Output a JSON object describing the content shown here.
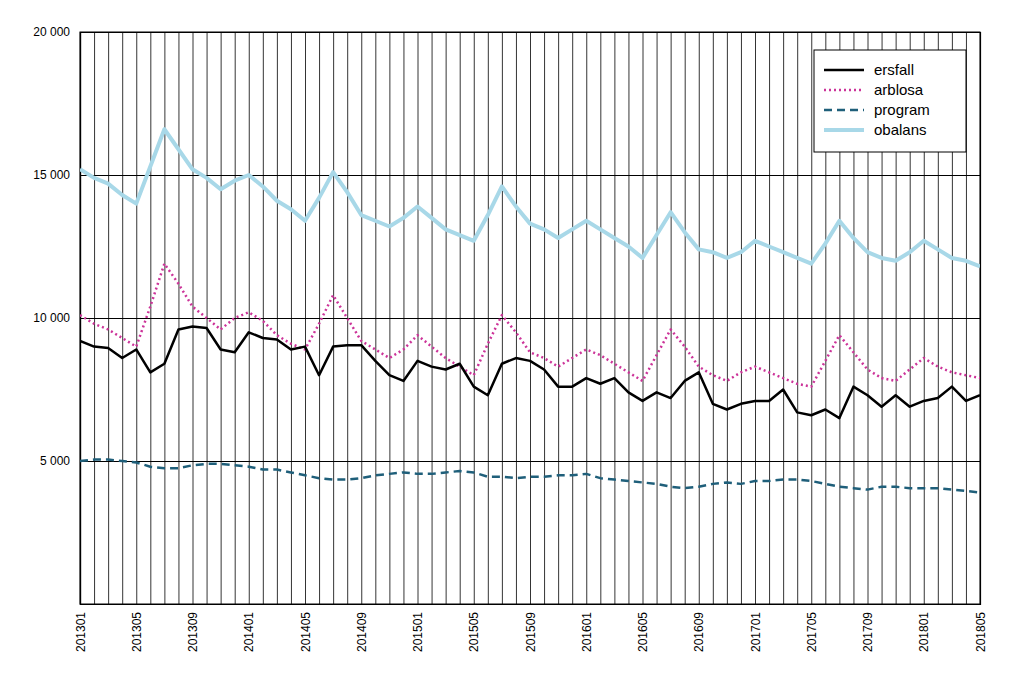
{
  "chart_data": {
    "type": "line",
    "categories": [
      "201301",
      null,
      null,
      null,
      "201305",
      null,
      null,
      null,
      "201309",
      null,
      null,
      null,
      "201401",
      null,
      null,
      null,
      "201405",
      null,
      null,
      null,
      "201409",
      null,
      null,
      null,
      "201501",
      null,
      null,
      null,
      "201505",
      null,
      null,
      null,
      "201509",
      null,
      null,
      null,
      "201601",
      null,
      null,
      null,
      "201605",
      null,
      null,
      null,
      "201609",
      null,
      null,
      null,
      "201701",
      null,
      null,
      null,
      "201705",
      null,
      null,
      null,
      "201709",
      null,
      null,
      null,
      "201801",
      null,
      null,
      null,
      "201805"
    ],
    "series": [
      {
        "name": "ersfall",
        "color": "#000000",
        "line_style": "solid",
        "values": [
          9200,
          9000,
          8950,
          8600,
          8900,
          8100,
          8400,
          9600,
          9700,
          9650,
          8900,
          8800,
          9500,
          9300,
          9250,
          8900,
          9000,
          8000,
          9000,
          9050,
          9050,
          8500,
          8000,
          7800,
          8500,
          8300,
          8200,
          8400,
          7600,
          7300,
          8400,
          8600,
          8500,
          8200,
          7600,
          7600,
          7900,
          7700,
          7900,
          7400,
          7100,
          7400,
          7200,
          7800,
          8100,
          7000,
          6800,
          7000,
          7100,
          7100,
          7500,
          6700,
          6600,
          6800,
          6500,
          7600,
          7300,
          6900,
          7300,
          6900,
          7100,
          7200,
          7600,
          7100,
          7300
        ]
      },
      {
        "name": "arblosa",
        "color": "#cc3399",
        "line_style": "dotted",
        "values": [
          10100,
          9800,
          9600,
          9300,
          9000,
          10400,
          11900,
          11200,
          10400,
          10000,
          9600,
          10000,
          10200,
          9900,
          9400,
          9100,
          8900,
          9800,
          10800,
          10000,
          9200,
          8900,
          8600,
          8900,
          9400,
          9000,
          8600,
          8300,
          8000,
          9100,
          10100,
          9500,
          8800,
          8600,
          8300,
          8600,
          8900,
          8700,
          8400,
          8100,
          7800,
          8700,
          9600,
          9000,
          8300,
          8000,
          7800,
          8100,
          8300,
          8100,
          7900,
          7700,
          7600,
          8500,
          9400,
          8800,
          8200,
          7900,
          7800,
          8200,
          8600,
          8300,
          8100,
          8000,
          7900
        ]
      },
      {
        "name": "program",
        "color": "#1f5f7a",
        "line_style": "dashed",
        "values": [
          5000,
          5050,
          5050,
          5000,
          4950,
          4800,
          4750,
          4750,
          4850,
          4900,
          4900,
          4850,
          4800,
          4700,
          4700,
          4600,
          4500,
          4400,
          4350,
          4350,
          4400,
          4500,
          4550,
          4600,
          4550,
          4550,
          4600,
          4650,
          4600,
          4450,
          4450,
          4400,
          4450,
          4450,
          4500,
          4500,
          4550,
          4400,
          4350,
          4300,
          4250,
          4200,
          4100,
          4050,
          4100,
          4200,
          4250,
          4200,
          4300,
          4300,
          4350,
          4350,
          4300,
          4200,
          4100,
          4050,
          4000,
          4100,
          4100,
          4050,
          4050,
          4050,
          4000,
          3950,
          3900
        ]
      },
      {
        "name": "obalans",
        "color": "#a8d8e8",
        "line_style": "solid",
        "values": [
          15200,
          14900,
          14700,
          14300,
          14000,
          15300,
          16600,
          15900,
          15200,
          14900,
          14500,
          14800,
          15000,
          14600,
          14100,
          13800,
          13400,
          14200,
          15100,
          14400,
          13600,
          13400,
          13200,
          13500,
          13900,
          13500,
          13100,
          12900,
          12700,
          13600,
          14600,
          13900,
          13300,
          13100,
          12800,
          13100,
          13400,
          13100,
          12800,
          12500,
          12100,
          12900,
          13700,
          13000,
          12400,
          12300,
          12100,
          12300,
          12700,
          12500,
          12300,
          12100,
          11900,
          12600,
          13400,
          12800,
          12300,
          12100,
          12000,
          12300,
          12700,
          12400,
          12100,
          12000,
          11800
        ]
      }
    ],
    "ylim": [
      0,
      20000
    ],
    "yticks": [
      {
        "value": 5000,
        "label": "5 000"
      },
      {
        "value": 10000,
        "label": "10 000"
      },
      {
        "value": 15000,
        "label": "15 000"
      },
      {
        "value": 20000,
        "label": "20 000"
      }
    ],
    "grid": true,
    "legend": "upper right"
  }
}
